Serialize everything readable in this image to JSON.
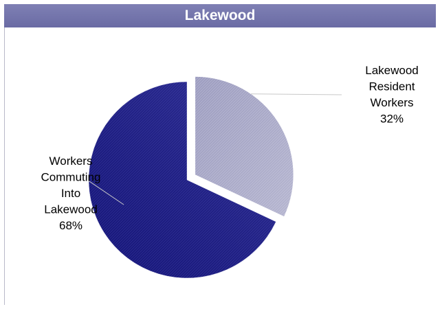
{
  "chart_data": {
    "type": "pie",
    "title": "Lakewood",
    "categories": [
      "Lakewood Resident Workers",
      "Workers Commuting Into Lakewood"
    ],
    "values": [
      32,
      68
    ],
    "value_unit": "%",
    "labels": [
      [
        "Lakewood",
        "Resident",
        "Workers",
        "32%"
      ],
      [
        "Workers",
        "Commuting",
        "Into",
        "Lakewood",
        "68%"
      ]
    ],
    "exploded": [
      true,
      false
    ],
    "colors": [
      "#a8a8c8",
      "#1c1c80"
    ],
    "legend": "none"
  }
}
